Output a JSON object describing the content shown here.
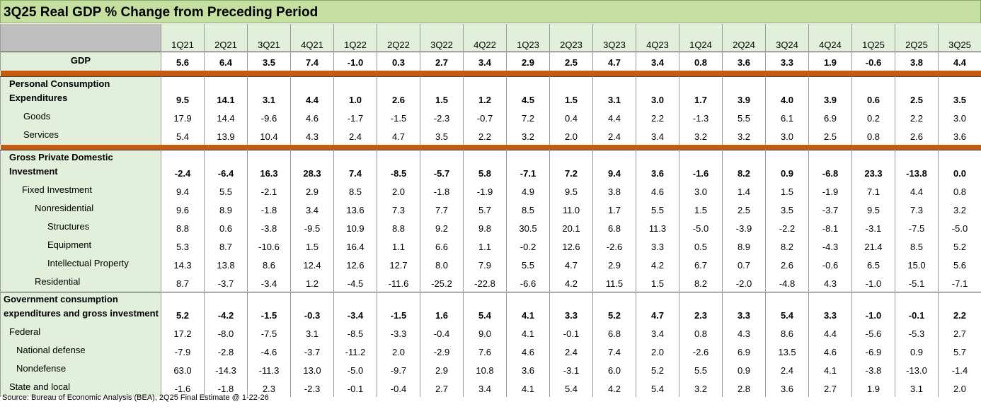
{
  "title": "3Q25 Real GDP % Change from Preceding Period",
  "table": {
    "columns": [
      "1Q21",
      "2Q21",
      "3Q21",
      "4Q21",
      "1Q22",
      "2Q22",
      "3Q22",
      "4Q22",
      "1Q23",
      "2Q23",
      "3Q23",
      "4Q23",
      "1Q24",
      "2Q24",
      "3Q24",
      "4Q24",
      "1Q25",
      "2Q25",
      "3Q25"
    ],
    "rows": [
      {
        "label": "GDP",
        "values": [
          "5.6",
          "6.4",
          "3.5",
          "7.4",
          "-1.0",
          "0.3",
          "2.7",
          "3.4",
          "2.9",
          "2.5",
          "4.7",
          "3.4",
          "0.8",
          "3.6",
          "3.3",
          "1.9",
          "-0.6",
          "3.8",
          "4.4"
        ]
      },
      {
        "label": "Personal Consumption Expenditures",
        "values": [
          "9.5",
          "14.1",
          "3.1",
          "4.4",
          "1.0",
          "2.6",
          "1.5",
          "1.2",
          "4.5",
          "1.5",
          "3.1",
          "3.0",
          "1.7",
          "3.9",
          "4.0",
          "3.9",
          "0.6",
          "2.5",
          "3.5"
        ]
      },
      {
        "label": "Goods",
        "values": [
          "17.9",
          "14.4",
          "-9.6",
          "4.6",
          "-1.7",
          "-1.5",
          "-2.3",
          "-0.7",
          "7.2",
          "0.4",
          "4.4",
          "2.2",
          "-1.3",
          "5.5",
          "6.1",
          "6.9",
          "0.2",
          "2.2",
          "3.0"
        ]
      },
      {
        "label": "Services",
        "values": [
          "5.4",
          "13.9",
          "10.4",
          "4.3",
          "2.4",
          "4.7",
          "3.5",
          "2.2",
          "3.2",
          "2.0",
          "2.4",
          "3.4",
          "3.2",
          "3.2",
          "3.0",
          "2.5",
          "0.8",
          "2.6",
          "3.6"
        ]
      },
      {
        "label": "Gross Private Domestic Investment",
        "values": [
          "-2.4",
          "-6.4",
          "16.3",
          "28.3",
          "7.4",
          "-8.5",
          "-5.7",
          "5.8",
          "-7.1",
          "7.2",
          "9.4",
          "3.6",
          "-1.6",
          "8.2",
          "0.9",
          "-6.8",
          "23.3",
          "-13.8",
          "0.0"
        ]
      },
      {
        "label": "Fixed Investment",
        "values": [
          "9.4",
          "5.5",
          "-2.1",
          "2.9",
          "8.5",
          "2.0",
          "-1.8",
          "-1.9",
          "4.9",
          "9.5",
          "3.8",
          "4.6",
          "3.0",
          "1.4",
          "1.5",
          "-1.9",
          "7.1",
          "4.4",
          "0.8"
        ]
      },
      {
        "label": "Nonresidential",
        "values": [
          "9.6",
          "8.9",
          "-1.8",
          "3.4",
          "13.6",
          "7.3",
          "7.7",
          "5.7",
          "8.5",
          "11.0",
          "1.7",
          "5.5",
          "1.5",
          "2.5",
          "3.5",
          "-3.7",
          "9.5",
          "7.3",
          "3.2"
        ]
      },
      {
        "label": "Structures",
        "values": [
          "8.8",
          "0.6",
          "-3.8",
          "-9.5",
          "10.9",
          "8.8",
          "9.2",
          "9.8",
          "30.5",
          "20.1",
          "6.8",
          "11.3",
          "-5.0",
          "-3.9",
          "-2.2",
          "-8.1",
          "-3.1",
          "-7.5",
          "-5.0"
        ]
      },
      {
        "label": "Equipment",
        "values": [
          "5.3",
          "8.7",
          "-10.6",
          "1.5",
          "16.4",
          "1.1",
          "6.6",
          "1.1",
          "-0.2",
          "12.6",
          "-2.6",
          "3.3",
          "0.5",
          "8.9",
          "8.2",
          "-4.3",
          "21.4",
          "8.5",
          "5.2"
        ]
      },
      {
        "label": "Intellectual Property",
        "values": [
          "14.3",
          "13.8",
          "8.6",
          "12.4",
          "12.6",
          "12.7",
          "8.0",
          "7.9",
          "5.5",
          "4.7",
          "2.9",
          "4.2",
          "6.7",
          "0.7",
          "2.6",
          "-0.6",
          "6.5",
          "15.0",
          "5.6"
        ]
      },
      {
        "label": "Residential",
        "values": [
          "8.7",
          "-3.7",
          "-3.4",
          "1.2",
          "-4.5",
          "-11.6",
          "-25.2",
          "-22.8",
          "-6.6",
          "4.2",
          "11.5",
          "1.5",
          "8.2",
          "-2.0",
          "-4.8",
          "4.3",
          "-1.0",
          "-5.1",
          "-7.1"
        ]
      },
      {
        "label": "Government consumption expenditures and gross investment",
        "values": [
          "5.2",
          "-4.2",
          "-1.5",
          "-0.3",
          "-3.4",
          "-1.5",
          "1.6",
          "5.4",
          "4.1",
          "3.3",
          "5.2",
          "4.7",
          "2.3",
          "3.3",
          "5.4",
          "3.3",
          "-1.0",
          "-0.1",
          "2.2"
        ]
      },
      {
        "label": "Federal",
        "values": [
          "17.2",
          "-8.0",
          "-7.5",
          "3.1",
          "-8.5",
          "-3.3",
          "-0.4",
          "9.0",
          "4.1",
          "-0.1",
          "6.8",
          "3.4",
          "0.8",
          "4.3",
          "8.6",
          "4.4",
          "-5.6",
          "-5.3",
          "2.7"
        ]
      },
      {
        "label": "National defense",
        "values": [
          "-7.9",
          "-2.8",
          "-4.6",
          "-3.7",
          "-11.2",
          "2.0",
          "-2.9",
          "7.6",
          "4.6",
          "2.4",
          "7.4",
          "2.0",
          "-2.6",
          "6.9",
          "13.5",
          "4.6",
          "-6.9",
          "0.9",
          "5.7"
        ]
      },
      {
        "label": "Nondefense",
        "values": [
          "63.0",
          "-14.3",
          "-11.3",
          "13.0",
          "-5.0",
          "-9.7",
          "2.9",
          "10.8",
          "3.6",
          "-3.1",
          "6.0",
          "5.2",
          "5.5",
          "0.9",
          "2.4",
          "4.1",
          "-3.8",
          "-13.0",
          "-1.4"
        ]
      },
      {
        "label": "State and local",
        "values": [
          "-1.6",
          "-1.8",
          "2.3",
          "-2.3",
          "-0.1",
          "-0.4",
          "2.7",
          "3.4",
          "4.1",
          "5.4",
          "4.2",
          "5.4",
          "3.2",
          "2.8",
          "3.6",
          "2.7",
          "1.9",
          "3.1",
          "2.0"
        ]
      }
    ]
  },
  "source": "Source: Bureau of Economic Analysis (BEA), 2Q25 Final Estimate @ 1-22-26"
}
